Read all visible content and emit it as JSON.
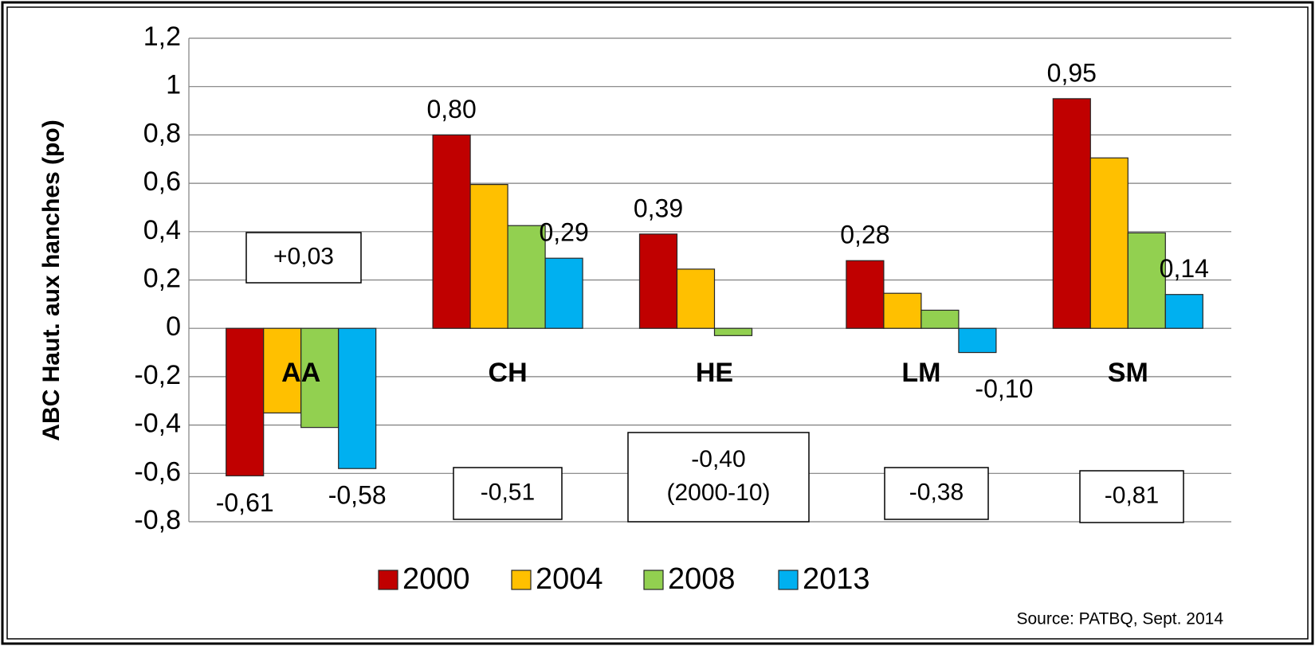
{
  "chart_data": {
    "type": "bar",
    "y_label": "ABC Haut. aux hanches (po)",
    "categories": [
      "AA",
      "CH",
      "HE",
      "LM",
      "SM"
    ],
    "series": [
      {
        "name": "2000",
        "color": "#c00000",
        "values": [
          -0.61,
          0.8,
          0.39,
          0.28,
          0.95
        ],
        "value_labels": [
          "-0,61",
          "0,80",
          "0,39",
          "0,28",
          "0,95"
        ]
      },
      {
        "name": "2004",
        "color": "#ffc000",
        "values": [
          -0.35,
          0.595,
          0.245,
          0.145,
          0.705
        ]
      },
      {
        "name": "2008",
        "color": "#92d050",
        "values": [
          -0.41,
          0.425,
          -0.03,
          0.075,
          0.395
        ]
      },
      {
        "name": "2013",
        "color": "#00b0f0",
        "values": [
          -0.58,
          0.29,
          null,
          -0.1,
          0.14
        ],
        "value_labels": [
          "-0,58",
          "0,29",
          null,
          "-0,10",
          "0,14"
        ]
      }
    ],
    "ylim": [
      -0.8,
      1.2
    ],
    "yticks": [
      {
        "value": -0.8,
        "label": "-0,8"
      },
      {
        "value": -0.6,
        "label": "-0,6"
      },
      {
        "value": -0.4,
        "label": "-0,4"
      },
      {
        "value": -0.2,
        "label": "-0,2"
      },
      0,
      {
        "value": 0.2,
        "label": "0,2"
      },
      {
        "value": 0.4,
        "label": "0,4"
      },
      {
        "value": 0.6,
        "label": "0,6"
      },
      {
        "value": 0.8,
        "label": "0,8"
      },
      1,
      {
        "value": 1.2,
        "label": "1,2"
      }
    ],
    "grid": true,
    "legend": "bottom",
    "annotations": [
      [
        "+0,03"
      ],
      [
        "-0,51"
      ],
      [
        "-0,40",
        "(2000-10)"
      ],
      [
        "-0,38"
      ],
      [
        "-0,81"
      ]
    ],
    "source": "Source: PATBQ, Sept. 2014"
  }
}
